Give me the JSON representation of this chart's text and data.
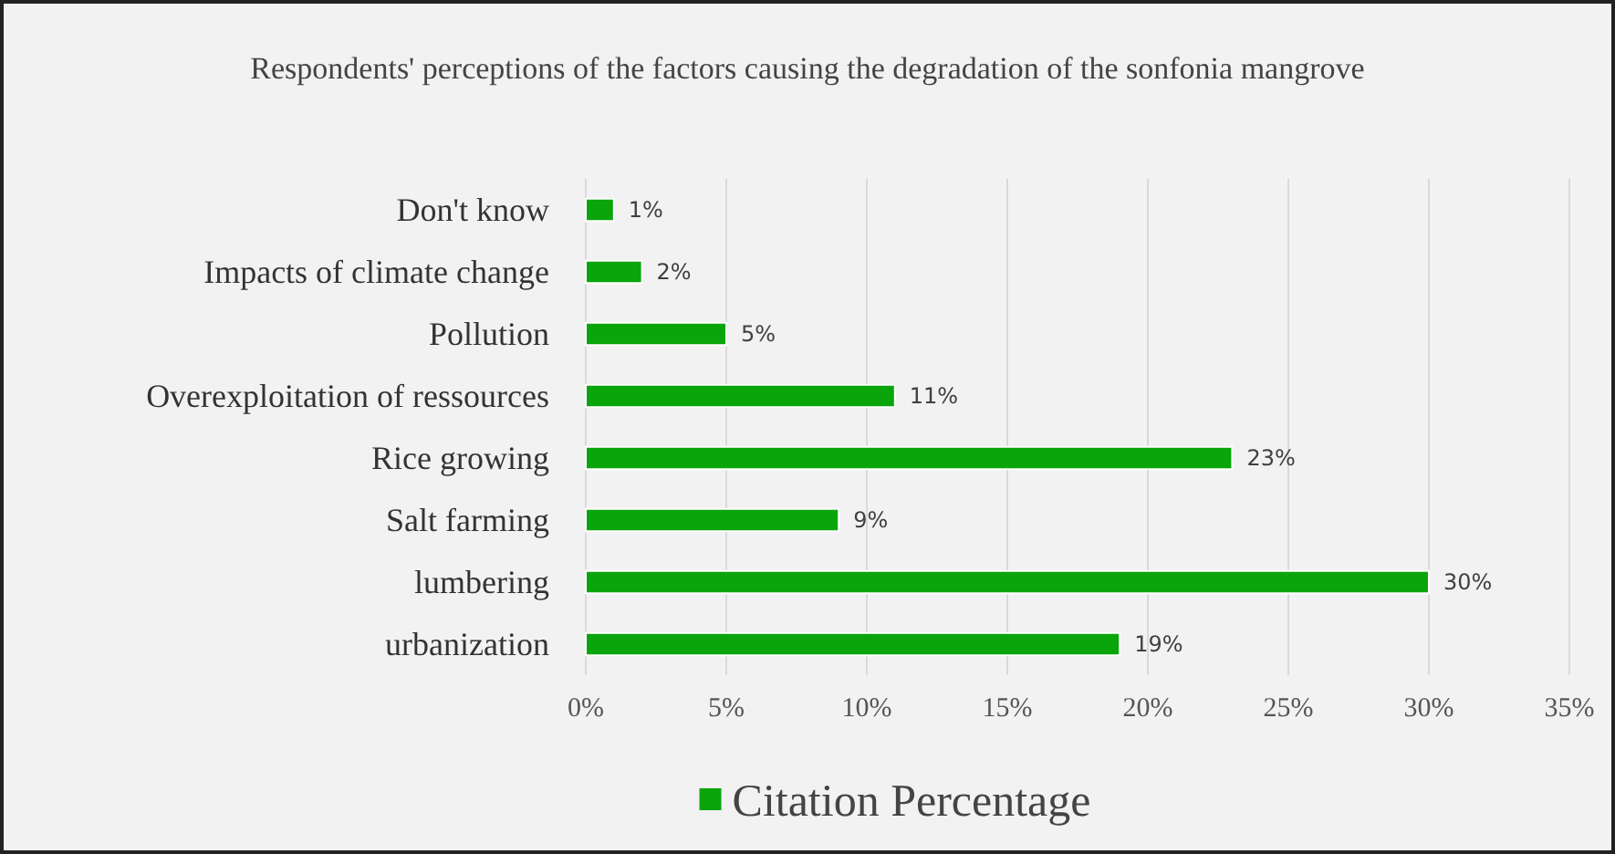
{
  "chart_data": {
    "type": "bar",
    "orientation": "horizontal",
    "title": "Respondents' perceptions of the factors causing the degradation of the sonfonia mangrove",
    "categories": [
      "Don't know",
      "Impacts of climate change",
      "Pollution",
      "Overexploitation of ressources",
      "Rice growing",
      "Salt farming",
      "lumbering",
      "urbanization"
    ],
    "series": [
      {
        "name": "Citation Percentage",
        "color": "#0aa50a",
        "values": [
          1,
          2,
          5,
          11,
          23,
          9,
          30,
          19
        ],
        "value_labels": [
          "1%",
          "2%",
          "5%",
          "11%",
          "23%",
          "9%",
          "30%",
          "19%"
        ]
      }
    ],
    "xlim": [
      0,
      35
    ],
    "xticks": [
      {
        "value": 0,
        "label": "0%"
      },
      {
        "value": 5,
        "label": "5%"
      },
      {
        "value": 10,
        "label": "10%"
      },
      {
        "value": 15,
        "label": "15%"
      },
      {
        "value": 20,
        "label": "20%"
      },
      {
        "value": 25,
        "label": "25%"
      },
      {
        "value": 30,
        "label": "30%"
      },
      {
        "value": 35,
        "label": "35%"
      }
    ],
    "grid": "x",
    "legend": "bottom"
  }
}
